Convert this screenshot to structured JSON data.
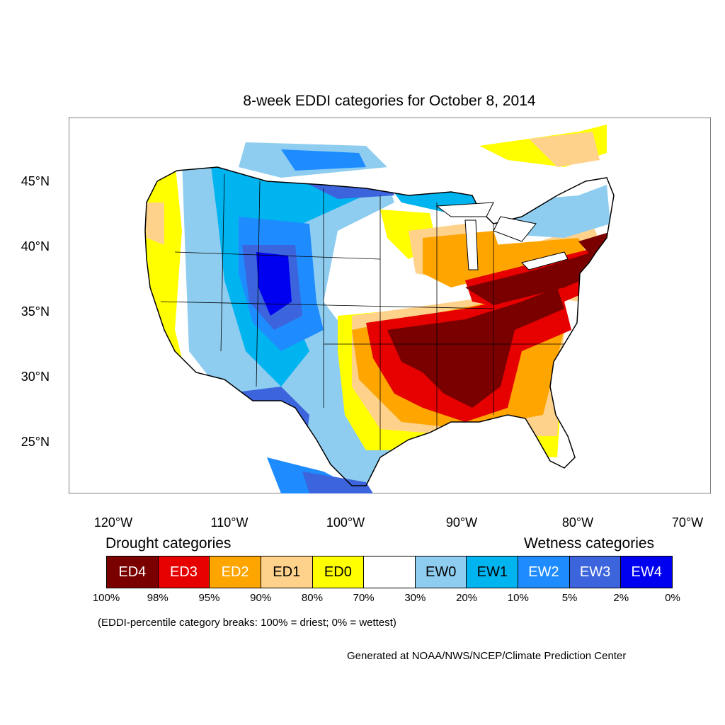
{
  "title": "8-week EDDI categories for October 8, 2014",
  "lat_labels": [
    "45°N",
    "40°N",
    "35°N",
    "30°N",
    "25°N"
  ],
  "lon_labels": [
    "120°W",
    "110°W",
    "100°W",
    "90°W",
    "80°W",
    "70°W"
  ],
  "legend": {
    "drought_heading": "Drought categories",
    "wetness_heading": "Wetness categories",
    "categories": [
      {
        "label": "ED4",
        "color": "#7a0000",
        "text_color": "#ffffff"
      },
      {
        "label": "ED3",
        "color": "#e60000",
        "text_color": "#ffffff"
      },
      {
        "label": "ED2",
        "color": "#ffa500",
        "text_color": "#ffffff"
      },
      {
        "label": "ED1",
        "color": "#ffd28c",
        "text_color": "#000000"
      },
      {
        "label": "ED0",
        "color": "#ffff00",
        "text_color": "#000000"
      },
      {
        "label": "",
        "color": "#ffffff",
        "text_color": "#000000"
      },
      {
        "label": "EW0",
        "color": "#8ecdf0",
        "text_color": "#000000"
      },
      {
        "label": "EW1",
        "color": "#00b4f0",
        "text_color": "#000000"
      },
      {
        "label": "EW2",
        "color": "#1e8cff",
        "text_color": "#ffffff"
      },
      {
        "label": "EW3",
        "color": "#3c64dc",
        "text_color": "#ffffff"
      },
      {
        "label": "EW4",
        "color": "#0000f0",
        "text_color": "#ffffff"
      }
    ],
    "breaks": [
      "100%",
      "98%",
      "95%",
      "90%",
      "80%",
      "70%",
      "30%",
      "20%",
      "10%",
      "5%",
      "2%",
      "0%"
    ],
    "note": "(EDDI-percentile category breaks: 100% = driest; 0% = wettest)"
  },
  "credit": "Generated at NOAA/NWS/NCEP/Climate Prediction Center"
}
